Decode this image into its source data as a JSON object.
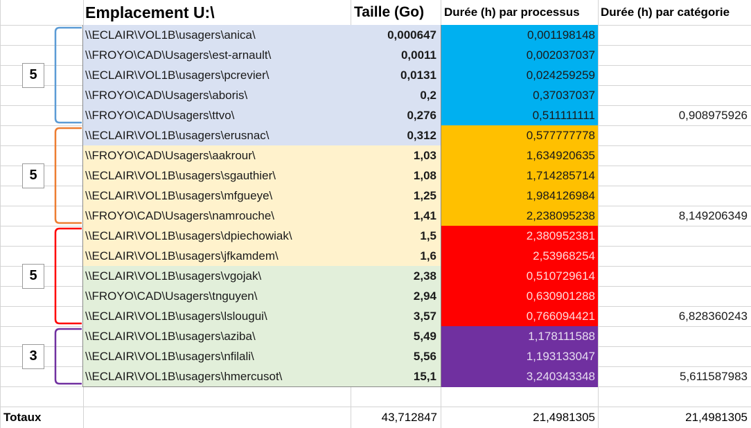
{
  "headers": {
    "location": "Emplacement U:\\",
    "size": "Taille (Go)",
    "duration_process": "Durée (h) par processus",
    "duration_category": "Durée (h) par catégorie"
  },
  "rows": [
    {
      "path": "\\\\ECLAIR\\VOL1B\\usagers\\anica\\",
      "size": "0,000647",
      "duration": "0,001198148",
      "category_total": "",
      "row_color": "#d9e1f2",
      "dur_color": "#00b0f0",
      "dur_text_color": "#1a1a1a"
    },
    {
      "path": "\\\\FROYO\\CAD\\Usagers\\est-arnault\\",
      "size": "0,0011",
      "duration": "0,002037037",
      "category_total": "",
      "row_color": "#d9e1f2",
      "dur_color": "#00b0f0",
      "dur_text_color": "#1a1a1a"
    },
    {
      "path": "\\\\ECLAIR\\VOL1B\\usagers\\pcrevier\\",
      "size": "0,0131",
      "duration": "0,024259259",
      "category_total": "",
      "row_color": "#d9e1f2",
      "dur_color": "#00b0f0",
      "dur_text_color": "#1a1a1a"
    },
    {
      "path": "\\\\FROYO\\CAD\\Usagers\\aboris\\",
      "size": "0,2",
      "duration": "0,37037037",
      "category_total": "",
      "row_color": "#d9e1f2",
      "dur_color": "#00b0f0",
      "dur_text_color": "#1a1a1a"
    },
    {
      "path": "\\\\FROYO\\CAD\\Usagers\\ttvo\\",
      "size": "0,276",
      "duration": "0,511111111",
      "category_total": "0,908975926",
      "row_color": "#d9e1f2",
      "dur_color": "#00b0f0",
      "dur_text_color": "#1a1a1a"
    },
    {
      "path": "\\\\ECLAIR\\VOL1B\\usagers\\erusnac\\",
      "size": "0,312",
      "duration": "0,577777778",
      "category_total": "",
      "row_color": "#d9e1f2",
      "dur_color": "#ffc000",
      "dur_text_color": "#1a1a1a"
    },
    {
      "path": "\\\\FROYO\\CAD\\Usagers\\aakrour\\",
      "size": "1,03",
      "duration": "1,634920635",
      "category_total": "",
      "row_color": "#fff2cc",
      "dur_color": "#ffc000",
      "dur_text_color": "#1a1a1a"
    },
    {
      "path": "\\\\ECLAIR\\VOL1B\\usagers\\sgauthier\\",
      "size": "1,08",
      "duration": "1,714285714",
      "category_total": "",
      "row_color": "#fff2cc",
      "dur_color": "#ffc000",
      "dur_text_color": "#1a1a1a"
    },
    {
      "path": "\\\\ECLAIR\\VOL1B\\usagers\\mfgueye\\",
      "size": "1,25",
      "duration": "1,984126984",
      "category_total": "",
      "row_color": "#fff2cc",
      "dur_color": "#ffc000",
      "dur_text_color": "#1a1a1a"
    },
    {
      "path": "\\\\FROYO\\CAD\\Usagers\\namrouche\\",
      "size": "1,41",
      "duration": "2,238095238",
      "category_total": "8,149206349",
      "row_color": "#fff2cc",
      "dur_color": "#ffc000",
      "dur_text_color": "#1a1a1a"
    },
    {
      "path": "\\\\ECLAIR\\VOL1B\\usagers\\dpiechowiak\\",
      "size": "1,5",
      "duration": "2,380952381",
      "category_total": "",
      "row_color": "#fff2cc",
      "dur_color": "#ff0000",
      "dur_text_color": "#ffd9d9"
    },
    {
      "path": "\\\\ECLAIR\\VOL1B\\usagers\\jfkamdem\\",
      "size": "1,6",
      "duration": "2,53968254",
      "category_total": "",
      "row_color": "#fff2cc",
      "dur_color": "#ff0000",
      "dur_text_color": "#ffd9d9"
    },
    {
      "path": "\\\\ECLAIR\\VOL1B\\usagers\\vgojak\\",
      "size": "2,38",
      "duration": "0,510729614",
      "category_total": "",
      "row_color": "#e2efda",
      "dur_color": "#ff0000",
      "dur_text_color": "#ffd9d9"
    },
    {
      "path": "\\\\FROYO\\CAD\\Usagers\\tnguyen\\",
      "size": "2,94",
      "duration": "0,630901288",
      "category_total": "",
      "row_color": "#e2efda",
      "dur_color": "#ff0000",
      "dur_text_color": "#ffd9d9"
    },
    {
      "path": "\\\\ECLAIR\\VOL1B\\usagers\\lslougui\\",
      "size": "3,57",
      "duration": "0,766094421",
      "category_total": "6,828360243",
      "row_color": "#e2efda",
      "dur_color": "#ff0000",
      "dur_text_color": "#ffd9d9"
    },
    {
      "path": "\\\\ECLAIR\\VOL1B\\usagers\\aziba\\",
      "size": "5,49",
      "duration": "1,178111588",
      "category_total": "",
      "row_color": "#e2efda",
      "dur_color": "#7030a0",
      "dur_text_color": "#e6dcf0"
    },
    {
      "path": "\\\\ECLAIR\\VOL1B\\usagers\\nfilali\\",
      "size": "5,56",
      "duration": "1,193133047",
      "category_total": "",
      "row_color": "#e2efda",
      "dur_color": "#7030a0",
      "dur_text_color": "#e6dcf0"
    },
    {
      "path": "\\\\ECLAIR\\VOL1B\\usagers\\hmercusot\\",
      "size": "15,1",
      "duration": "3,240343348",
      "category_total": "5,611587983",
      "row_color": "#e2efda",
      "dur_color": "#7030a0",
      "dur_text_color": "#e6dcf0"
    }
  ],
  "groups": [
    {
      "count": "5",
      "color": "#5b9bd5"
    },
    {
      "count": "5",
      "color": "#ed7d31"
    },
    {
      "count": "5",
      "color": "#ff0000"
    },
    {
      "count": "3",
      "color": "#7030a0"
    }
  ],
  "totals": {
    "label": "Totaux",
    "size": "43,712847",
    "duration_process": "21,4981305",
    "duration_category": "21,4981305"
  }
}
